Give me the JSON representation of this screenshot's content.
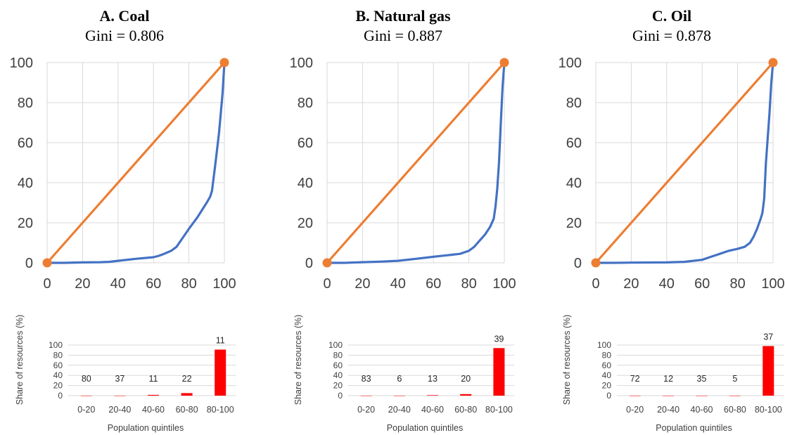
{
  "chart_data": [
    {
      "type": "line",
      "panel": "A",
      "title": "A. Coal",
      "subtitle": "Gini = 0.806",
      "xlim": [
        0,
        100
      ],
      "ylim": [
        0,
        100
      ],
      "xticks": [
        "0",
        "20",
        "40",
        "60",
        "80",
        "100"
      ],
      "yticks": [
        "0",
        "20",
        "40",
        "60",
        "80",
        "100"
      ],
      "grid": true,
      "series": [
        {
          "color": "#4472C4",
          "points": [
            [
              0,
              0
            ],
            [
              10,
              0
            ],
            [
              20,
              0.2
            ],
            [
              30,
              0.3
            ],
            [
              35,
              0.5
            ],
            [
              40,
              1
            ],
            [
              50,
              2
            ],
            [
              60,
              2.8
            ],
            [
              63,
              3.5
            ],
            [
              66,
              4.5
            ],
            [
              70,
              6
            ],
            [
              73,
              8
            ],
            [
              80,
              17
            ],
            [
              85,
              23
            ],
            [
              90,
              30
            ],
            [
              92,
              33
            ],
            [
              93,
              36
            ],
            [
              95,
              50
            ],
            [
              97,
              65
            ],
            [
              99,
              85
            ],
            [
              100,
              100
            ]
          ]
        },
        {
          "color": "#ED7D31",
          "points": [
            [
              0,
              0
            ],
            [
              100,
              100
            ]
          ]
        }
      ],
      "bar_chart": {
        "type": "bar",
        "categories": [
          "0-20",
          "20-40",
          "40-60",
          "60-80",
          "80-100"
        ],
        "values": [
          0,
          0,
          1.5,
          5,
          91
        ],
        "data_labels": [
          "80",
          "37",
          "11",
          "22",
          "11"
        ],
        "ylabel": "Share of resources (%)",
        "xlabel": "Population quintiles",
        "ylim": [
          0,
          100
        ],
        "yticks": [
          "0",
          "20",
          "40",
          "60",
          "80",
          "100"
        ],
        "bar_color": "#FF0000"
      }
    },
    {
      "type": "line",
      "panel": "B",
      "title": "B. Natural gas",
      "subtitle": "Gini = 0.887",
      "xlim": [
        0,
        100
      ],
      "ylim": [
        0,
        100
      ],
      "xticks": [
        "0",
        "20",
        "40",
        "60",
        "80",
        "100"
      ],
      "yticks": [
        "0",
        "20",
        "40",
        "60",
        "80",
        "100"
      ],
      "grid": true,
      "series": [
        {
          "color": "#4472C4",
          "points": [
            [
              0,
              0
            ],
            [
              10,
              0
            ],
            [
              20,
              0.3
            ],
            [
              30,
              0.6
            ],
            [
              40,
              1
            ],
            [
              50,
              2
            ],
            [
              60,
              3
            ],
            [
              70,
              4
            ],
            [
              75,
              4.5
            ],
            [
              80,
              6
            ],
            [
              83,
              8
            ],
            [
              86,
              11
            ],
            [
              89,
              14
            ],
            [
              92,
              18
            ],
            [
              94,
              22
            ],
            [
              95,
              28
            ],
            [
              96,
              37
            ],
            [
              97,
              50
            ],
            [
              98,
              70
            ],
            [
              99,
              88
            ],
            [
              100,
              100
            ]
          ]
        },
        {
          "color": "#ED7D31",
          "points": [
            [
              0,
              0
            ],
            [
              100,
              100
            ]
          ]
        }
      ],
      "bar_chart": {
        "type": "bar",
        "categories": [
          "0-20",
          "20-40",
          "40-60",
          "60-80",
          "80-100"
        ],
        "values": [
          0,
          0,
          1,
          3,
          94
        ],
        "data_labels": [
          "83",
          "6",
          "13",
          "20",
          "39"
        ],
        "ylabel": "Share of resources (%)",
        "xlabel": "Population quintiles",
        "ylim": [
          0,
          100
        ],
        "yticks": [
          "0",
          "20",
          "40",
          "60",
          "80",
          "100"
        ],
        "bar_color": "#FF0000"
      }
    },
    {
      "type": "line",
      "panel": "C",
      "title": "C. Oil",
      "subtitle": "Gini = 0.878",
      "xlim": [
        0,
        100
      ],
      "ylim": [
        0,
        100
      ],
      "xticks": [
        "0",
        "20",
        "40",
        "60",
        "80",
        "100"
      ],
      "yticks": [
        "0",
        "20",
        "40",
        "60",
        "80",
        "100"
      ],
      "grid": true,
      "series": [
        {
          "color": "#4472C4",
          "points": [
            [
              0,
              0
            ],
            [
              10,
              0
            ],
            [
              20,
              0.1
            ],
            [
              40,
              0.2
            ],
            [
              50,
              0.5
            ],
            [
              55,
              1
            ],
            [
              60,
              1.5
            ],
            [
              65,
              3
            ],
            [
              70,
              4.5
            ],
            [
              75,
              6
            ],
            [
              80,
              7
            ],
            [
              84,
              8
            ],
            [
              87,
              10
            ],
            [
              89,
              13
            ],
            [
              91,
              17
            ],
            [
              93,
              22
            ],
            [
              94,
              25
            ],
            [
              95,
              32
            ],
            [
              96,
              50
            ],
            [
              98,
              75
            ],
            [
              99,
              90
            ],
            [
              100,
              100
            ]
          ]
        },
        {
          "color": "#ED7D31",
          "points": [
            [
              0,
              0
            ],
            [
              100,
              100
            ]
          ]
        }
      ],
      "bar_chart": {
        "type": "bar",
        "categories": [
          "0-20",
          "20-40",
          "40-60",
          "60-80",
          "80-100"
        ],
        "values": [
          0,
          0,
          0,
          0,
          98
        ],
        "data_labels": [
          "72",
          "12",
          "35",
          "5",
          "37"
        ],
        "ylabel": "Share of resources (%)",
        "xlabel": "Population quintiles",
        "ylim": [
          0,
          100
        ],
        "yticks": [
          "0",
          "20",
          "40",
          "60",
          "80",
          "100"
        ],
        "bar_color": "#FF0000"
      }
    }
  ]
}
